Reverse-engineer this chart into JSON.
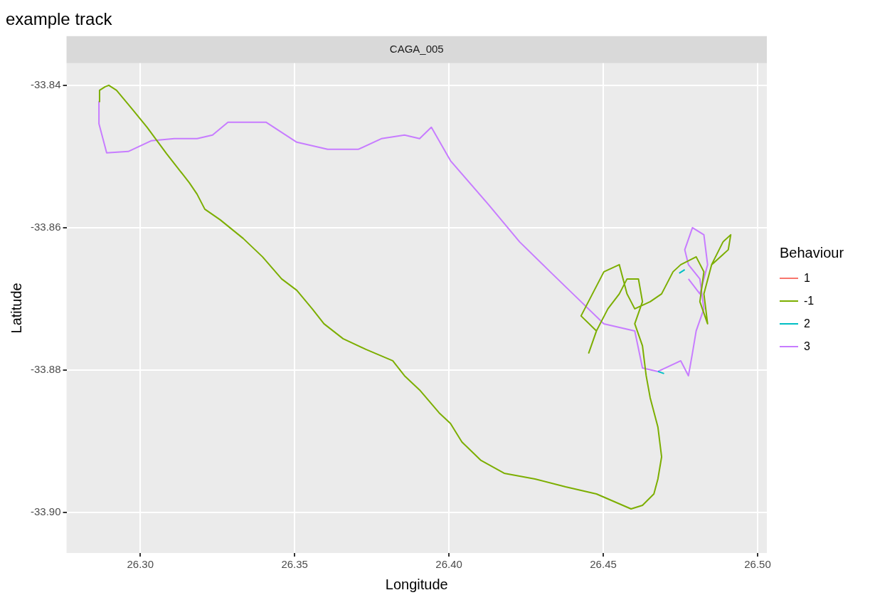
{
  "chart_data": {
    "type": "line",
    "title": "example track",
    "subtitle": "CAGA_005",
    "xlabel": "Longitude",
    "ylabel": "Latitude",
    "legend_title": "Behaviour",
    "legend": "right",
    "grid": true,
    "marker": "none",
    "line_style": "solid",
    "xlim": [
      26.2761,
      26.503
    ],
    "xticks": [
      {
        "value": 26.3,
        "label": "26.30"
      },
      26.35,
      {
        "value": 26.4,
        "label": "26.40"
      },
      26.45,
      {
        "value": 26.5,
        "label": "26.50"
      }
    ],
    "ylim": [
      -33.9057,
      -33.8369
    ],
    "yticks": [
      -33.84,
      -33.86,
      -33.88,
      {
        "value": -33.9,
        "label": "-33.90"
      }
    ],
    "series": [
      {
        "name": "1",
        "color": "#f8766d"
      },
      {
        "name": "-1",
        "color": "#7cae00",
        "x": [
          26.2866,
          26.2868,
          26.2886,
          26.2898,
          26.2923,
          26.2973,
          26.3022,
          26.3085,
          26.3159,
          26.3184,
          26.3209,
          26.3259,
          26.3333,
          26.3396,
          26.3458,
          26.3507,
          26.3557,
          26.3595,
          26.3657,
          26.3731,
          26.3818,
          26.3856,
          26.3905,
          26.3968,
          26.4005,
          26.4042,
          26.4104,
          26.4179,
          26.4279,
          26.4378,
          26.4478,
          26.459,
          26.4627,
          26.4664,
          26.4677,
          26.4689,
          26.4677,
          26.4652,
          26.4639,
          26.4627,
          26.4602,
          26.4627,
          26.4614,
          26.4577,
          26.4552,
          26.4515,
          26.4478,
          26.4453,
          26.4478,
          26.4428,
          26.4465,
          26.4502,
          26.4552,
          26.4577,
          26.4602,
          26.4652,
          26.4689,
          26.4726,
          26.4751,
          26.4801,
          26.4826,
          26.4813,
          26.4838,
          26.4826,
          26.4851,
          26.4888,
          26.4913,
          26.4905,
          26.4851
        ],
        "values": [
          -33.8423,
          -33.8407,
          -33.8402,
          -33.84,
          -33.8407,
          -33.8433,
          -33.8459,
          -33.8496,
          -33.8537,
          -33.8553,
          -33.8574,
          -33.8589,
          -33.8615,
          -33.8641,
          -33.8672,
          -33.8688,
          -33.8714,
          -33.8735,
          -33.8756,
          -33.8771,
          -33.8787,
          -33.8808,
          -33.8828,
          -33.886,
          -33.8875,
          -33.8901,
          -33.8927,
          -33.8945,
          -33.8953,
          -33.8964,
          -33.8974,
          -33.8995,
          -33.899,
          -33.8974,
          -33.8953,
          -33.8922,
          -33.888,
          -33.8839,
          -33.8808,
          -33.8766,
          -33.8735,
          -33.8704,
          -33.8672,
          -33.8672,
          -33.8693,
          -33.8714,
          -33.8745,
          -33.8776,
          -33.8745,
          -33.8724,
          -33.8693,
          -33.8662,
          -33.8652,
          -33.8693,
          -33.8714,
          -33.8704,
          -33.8693,
          -33.8662,
          -33.8652,
          -33.8641,
          -33.8662,
          -33.8704,
          -33.8735,
          -33.8693,
          -33.8652,
          -33.862,
          -33.861,
          -33.8631,
          -33.8652
        ]
      },
      {
        "name": "2",
        "color": "#00bfc4",
        "x": [
          26.4746,
          26.4764,
          null,
          26.4677,
          26.4697
        ],
        "values": [
          -33.8664,
          -33.8659,
          null,
          -33.8802,
          -33.8805
        ]
      },
      {
        "name": "3",
        "color": "#c77cff",
        "x": [
          26.2866,
          26.2866,
          26.2891,
          26.2961,
          26.3035,
          26.311,
          26.3184,
          26.3234,
          26.3284,
          26.3408,
          26.3507,
          26.3607,
          26.3706,
          26.3781,
          26.3856,
          26.3905,
          26.3943,
          26.4005,
          26.4129,
          26.4229,
          26.4328,
          26.4428,
          26.4502,
          26.4602,
          26.4627,
          26.4677,
          26.4751,
          26.4776,
          26.4789,
          26.4801,
          26.4826,
          26.4813,
          26.4776,
          26.4764,
          26.4789,
          26.4826,
          26.4838,
          26.4813,
          26.4776
        ],
        "values": [
          -33.8423,
          -33.8454,
          -33.8495,
          -33.8493,
          -33.8478,
          -33.8475,
          -33.8475,
          -33.847,
          -33.8452,
          -33.8452,
          -33.848,
          -33.849,
          -33.849,
          -33.8475,
          -33.847,
          -33.8475,
          -33.8459,
          -33.8506,
          -33.8568,
          -33.862,
          -33.8662,
          -33.8704,
          -33.8735,
          -33.8745,
          -33.8797,
          -33.8802,
          -33.8787,
          -33.8808,
          -33.8776,
          -33.8745,
          -33.8714,
          -33.8672,
          -33.8652,
          -33.8631,
          -33.86,
          -33.861,
          -33.8652,
          -33.8693,
          -33.8672
        ]
      }
    ]
  }
}
